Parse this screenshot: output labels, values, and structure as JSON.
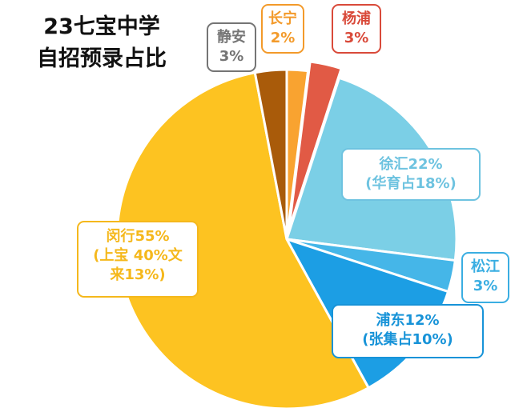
{
  "chart_data": {
    "type": "pie",
    "title_lines": [
      "23七宝中学",
      "自招预录占比"
    ],
    "slices": [
      {
        "name": "长宁",
        "value": 2,
        "color": "#F9A330",
        "label_lines": [
          "长宁",
          "2%"
        ],
        "label_color": "#F39A2A"
      },
      {
        "name": "杨浦",
        "value": 3,
        "color": "#E15A45",
        "label_lines": [
          "杨浦",
          "3%"
        ],
        "label_color": "#D94A3A"
      },
      {
        "name": "徐汇",
        "value": 22,
        "color": "#7BCFE6",
        "label_lines": [
          "徐汇22%",
          "(华育占18%)"
        ],
        "label_color": "#6EC3E0"
      },
      {
        "name": "松江",
        "value": 3,
        "color": "#45B6E8",
        "label_lines": [
          "松江",
          "3%"
        ],
        "label_color": "#3AAEE2"
      },
      {
        "name": "浦东",
        "value": 12,
        "color": "#1C9EE4",
        "label_lines": [
          "浦东12%",
          "(张集占10%)"
        ],
        "label_color": "#1793D8"
      },
      {
        "name": "闵行",
        "value": 55,
        "color": "#FDC321",
        "label_lines": [
          "闵行55%",
          "(上宝 40%文",
          "来13%)"
        ],
        "label_color": "#F5B81C"
      },
      {
        "name": "静安",
        "value": 3,
        "color": "#A95B0A",
        "label_lines": [
          "静安",
          "3%"
        ],
        "label_color": "#757575"
      }
    ]
  }
}
